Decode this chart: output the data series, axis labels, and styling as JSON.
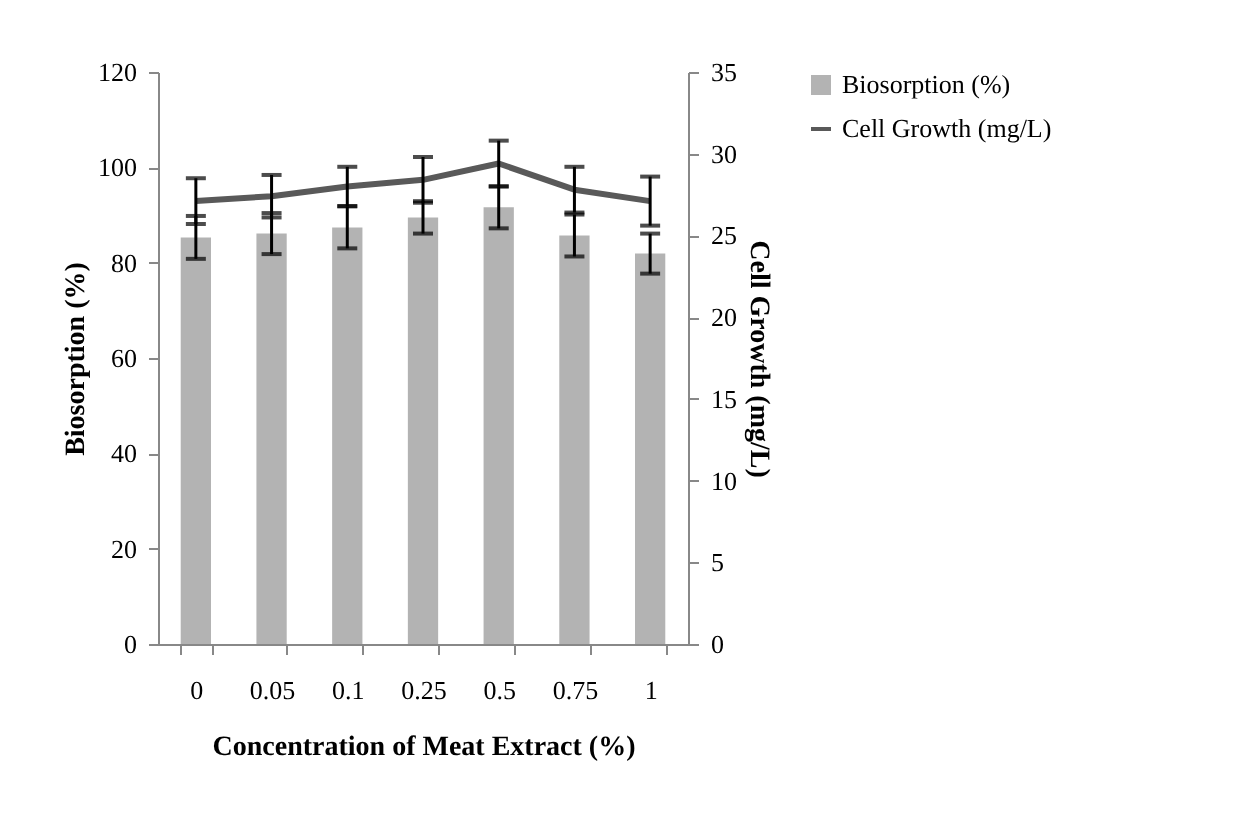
{
  "chart_data": {
    "type": "bar",
    "xlabel": "Concentration of Meat Extract (%)",
    "ylabel": "Biosorption (%)",
    "y2label": "Cell Growth (mg/L)",
    "categories": [
      "0",
      "0.05",
      "0.1",
      "0.25",
      "0.5",
      "0.75",
      "1"
    ],
    "series": [
      {
        "name": "Biosorption (%)",
        "color": "#b3b3b3",
        "values": [
          85.3,
          86.1,
          87.4,
          89.5,
          91.6,
          85.7,
          81.9
        ],
        "errors": [
          4.5,
          4.3,
          4.4,
          3.4,
          4.4,
          4.4,
          4.2
        ]
      },
      {
        "name": "Cell Growth (mg/L)",
        "type": "line",
        "axis": "y2",
        "color": "#595959",
        "values": [
          27.1,
          27.4,
          28.0,
          28.4,
          29.4,
          27.8,
          27.1
        ],
        "errors": [
          1.4,
          1.3,
          1.2,
          1.4,
          1.4,
          1.4,
          1.5
        ]
      }
    ],
    "ylim": [
      0,
      120
    ],
    "yticks": [
      0,
      20,
      40,
      60,
      80,
      100,
      120
    ],
    "y2lim": [
      0,
      35
    ],
    "y2ticks": [
      0,
      5,
      10,
      15,
      20,
      25,
      30,
      35
    ],
    "grid": false,
    "legend": "right",
    "marker": "none"
  }
}
